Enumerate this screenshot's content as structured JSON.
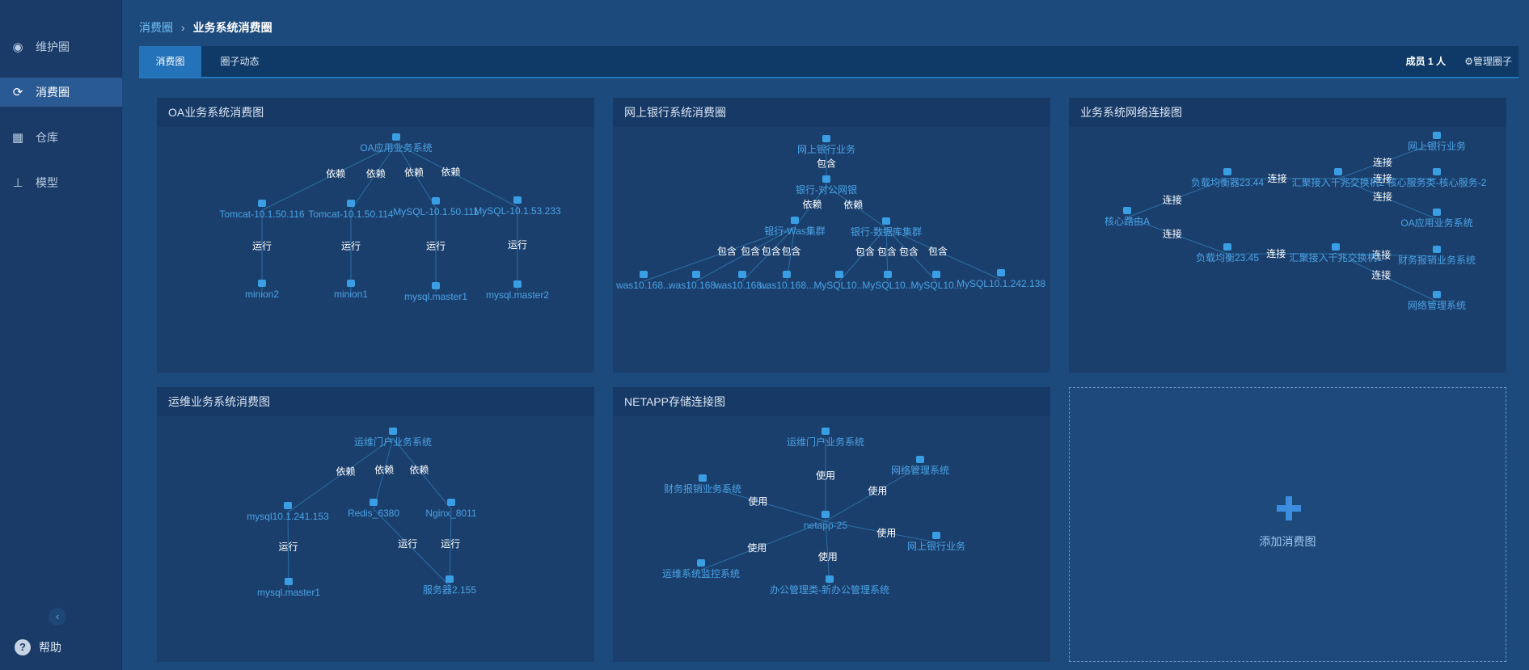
{
  "sidebar": {
    "items": [
      {
        "label": "维护圈"
      },
      {
        "label": "消费圈"
      },
      {
        "label": "仓库"
      },
      {
        "label": "模型"
      }
    ],
    "help_label": "帮助"
  },
  "breadcrumb": {
    "parent": "消费圈",
    "current": "业务系统消费圈"
  },
  "tabs": [
    {
      "label": "消费图"
    },
    {
      "label": "圈子动态"
    }
  ],
  "header_right": {
    "members": "成员 1 人",
    "manage": "管理圈子"
  },
  "add_label": "添加消费图",
  "panels": [
    {
      "title": "OA业务系统消费图",
      "nodes": [
        {
          "id": "oa",
          "label": "OA应用业务系统"
        },
        {
          "id": "t116",
          "label": "Tomcat-10.1.50.116"
        },
        {
          "id": "t114",
          "label": "Tomcat-10.1.50.114"
        },
        {
          "id": "m111",
          "label": "MySQL-10.1.50.111"
        },
        {
          "id": "m233",
          "label": "MySQL-10.1.53.233"
        },
        {
          "id": "mn2",
          "label": "minion2"
        },
        {
          "id": "mn1",
          "label": "minion1"
        },
        {
          "id": "mm1",
          "label": "mysql.master1"
        },
        {
          "id": "mm2",
          "label": "mysql.master2"
        }
      ],
      "edges": [
        {
          "s": "oa",
          "t": "t116",
          "label": "依赖"
        },
        {
          "s": "oa",
          "t": "t114",
          "label": "依赖"
        },
        {
          "s": "oa",
          "t": "m111",
          "label": "依赖"
        },
        {
          "s": "oa",
          "t": "m233",
          "label": "依赖"
        },
        {
          "s": "t116",
          "t": "mn2",
          "label": "运行"
        },
        {
          "s": "t114",
          "t": "mn1",
          "label": "运行"
        },
        {
          "s": "m111",
          "t": "mm1",
          "label": "运行"
        },
        {
          "s": "m233",
          "t": "mm2",
          "label": "运行"
        }
      ]
    },
    {
      "title": "网上银行系统消费圈",
      "nodes": [
        {
          "id": "wy",
          "label": "网上银行业务"
        },
        {
          "id": "dg",
          "label": "银行-对公网银"
        },
        {
          "id": "was",
          "label": "银行-Was集群"
        },
        {
          "id": "db",
          "label": "银行-数据库集群"
        },
        {
          "id": "w1",
          "label": "was10.168..."
        },
        {
          "id": "w2",
          "label": "was10.168..."
        },
        {
          "id": "w3",
          "label": "was10.168..."
        },
        {
          "id": "w4",
          "label": "was10.168..."
        },
        {
          "id": "d1",
          "label": "MySQL10..."
        },
        {
          "id": "d2",
          "label": "MySQL10..."
        },
        {
          "id": "d3",
          "label": "MySQL10..."
        },
        {
          "id": "d4",
          "label": "MySQL10.1.242.138"
        }
      ],
      "edges": [
        {
          "s": "wy",
          "t": "dg",
          "label": "包含"
        },
        {
          "s": "dg",
          "t": "was",
          "label": "依赖"
        },
        {
          "s": "dg",
          "t": "db",
          "label": "依赖"
        },
        {
          "s": "was",
          "t": "w1",
          "label": "包含"
        },
        {
          "s": "was",
          "t": "w2",
          "label": "包含"
        },
        {
          "s": "was",
          "t": "w3",
          "label": "包含"
        },
        {
          "s": "was",
          "t": "w4",
          "label": "包含"
        },
        {
          "s": "db",
          "t": "d1",
          "label": "包含"
        },
        {
          "s": "db",
          "t": "d2",
          "label": "包含"
        },
        {
          "s": "db",
          "t": "d3",
          "label": "包含"
        },
        {
          "s": "db",
          "t": "d4",
          "label": "包含"
        }
      ]
    },
    {
      "title": "业务系统网络连接图",
      "nodes": [
        {
          "id": "core",
          "label": "核心路由A"
        },
        {
          "id": "lb44",
          "label": "负载均衡器23.44"
        },
        {
          "id": "lb45",
          "label": "负载均衡23.45"
        },
        {
          "id": "sw2",
          "label": "汇聚接入千兆交换机2"
        },
        {
          "id": "sw1",
          "label": "汇聚接入千兆交换机1"
        },
        {
          "id": "wy",
          "label": "网上银行业务"
        },
        {
          "id": "hx",
          "label": "核心服务类-核心服务-2"
        },
        {
          "id": "oa",
          "label": "OA应用业务系统"
        },
        {
          "id": "cw",
          "label": "财务报销业务系统"
        },
        {
          "id": "wl",
          "label": "网络管理系统"
        }
      ],
      "edges": [
        {
          "s": "core",
          "t": "lb44",
          "label": "连接"
        },
        {
          "s": "core",
          "t": "lb45",
          "label": "连接"
        },
        {
          "s": "lb44",
          "t": "sw2",
          "label": "连接"
        },
        {
          "s": "lb45",
          "t": "sw1",
          "label": "连接"
        },
        {
          "s": "sw2",
          "t": "wy",
          "label": "连接"
        },
        {
          "s": "sw2",
          "t": "hx",
          "label": "连接"
        },
        {
          "s": "sw2",
          "t": "oa",
          "label": "连接"
        },
        {
          "s": "sw1",
          "t": "cw",
          "label": "连接"
        },
        {
          "s": "sw1",
          "t": "wl",
          "label": "连接"
        }
      ]
    },
    {
      "title": "运维业务系统消费图",
      "nodes": [
        {
          "id": "yw",
          "label": "运维门户业务系统"
        },
        {
          "id": "my",
          "label": "mysql10.1.241.153"
        },
        {
          "id": "rd",
          "label": "Redis_6380"
        },
        {
          "id": "ng",
          "label": "Nginx_8011"
        },
        {
          "id": "mm1",
          "label": "mysql.master1"
        },
        {
          "id": "fw",
          "label": "服务器2.155"
        }
      ],
      "edges": [
        {
          "s": "yw",
          "t": "my",
          "label": "依赖"
        },
        {
          "s": "yw",
          "t": "rd",
          "label": "依赖"
        },
        {
          "s": "yw",
          "t": "ng",
          "label": "依赖"
        },
        {
          "s": "my",
          "t": "mm1",
          "label": "运行"
        },
        {
          "s": "rd",
          "t": "fw",
          "label": "运行"
        },
        {
          "s": "ng",
          "t": "fw",
          "label": "运行"
        }
      ]
    },
    {
      "title": "NETAPP存储连接图",
      "nodes": [
        {
          "id": "na",
          "label": "netapp-25"
        },
        {
          "id": "yw",
          "label": "运维门户业务系统"
        },
        {
          "id": "wl",
          "label": "网络管理系统"
        },
        {
          "id": "cw",
          "label": "财务报销业务系统"
        },
        {
          "id": "wy",
          "label": "网上银行业务"
        },
        {
          "id": "jk",
          "label": "运维系统监控系统"
        },
        {
          "id": "bg",
          "label": "办公管理类-新办公管理系统"
        }
      ],
      "edges": [
        {
          "s": "yw",
          "t": "na",
          "label": "使用"
        },
        {
          "s": "wl",
          "t": "na",
          "label": "使用"
        },
        {
          "s": "cw",
          "t": "na",
          "label": "使用"
        },
        {
          "s": "wy",
          "t": "na",
          "label": "使用"
        },
        {
          "s": "jk",
          "t": "na",
          "label": "使用"
        },
        {
          "s": "bg",
          "t": "na",
          "label": "使用"
        }
      ]
    }
  ]
}
